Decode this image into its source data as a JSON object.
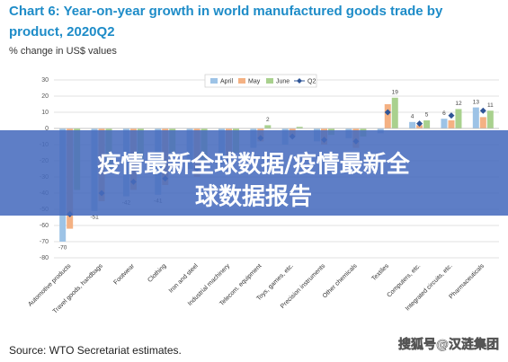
{
  "chart_data": {
    "type": "bar",
    "title": "Chart 6: Year-on-year growth in world manufactured goods trade by product, 2020Q2",
    "subtitle": "% change in US$ values",
    "source": "Source:   WTO Secretariat estimates.",
    "categories": [
      "Automotive products",
      "Travel goods, handbags",
      "Footwear",
      "Clothing",
      "Iron and steel",
      "Industrial machinery",
      "Telecom. equipment",
      "Toys, games, etc.",
      "Precision instruments",
      "Other chemicals",
      "Textiles",
      "Computers, etc.",
      "Integrated circuits, etc.",
      "Pharmaceuticals"
    ],
    "series": [
      {
        "name": "April",
        "color": "#9dc3e6",
        "values": [
          -70,
          -51,
          -42,
          -41,
          -25,
          -22,
          -12,
          -10,
          -8,
          -6,
          -3,
          4,
          6,
          13
        ],
        "value_labels": [
          "-70",
          "-51",
          "-42",
          "-41",
          null,
          null,
          null,
          null,
          null,
          null,
          null,
          "4",
          "6",
          "13"
        ]
      },
      {
        "name": "May",
        "color": "#f4b183",
        "values": [
          -62,
          -45,
          -38,
          -35,
          -30,
          -25,
          -8,
          -5,
          -10,
          -12,
          15,
          2,
          5,
          7
        ]
      },
      {
        "name": "June",
        "color": "#a9d18e",
        "values": [
          -38,
          -25,
          -20,
          -15,
          -20,
          -15,
          2,
          1,
          -4,
          -5,
          19,
          5,
          12,
          11
        ],
        "value_labels": [
          null,
          null,
          null,
          null,
          null,
          null,
          "2",
          null,
          null,
          null,
          "19",
          "5",
          "12",
          "11"
        ]
      },
      {
        "name": "Q2",
        "color": "#2f5597",
        "marker": "diamond",
        "values": [
          -53,
          -40,
          -33,
          -31,
          -25,
          -20,
          -6,
          -5,
          -7,
          -8,
          10,
          3,
          8,
          11
        ]
      }
    ],
    "ylim": [
      -80,
      30
    ],
    "yticks": [
      -80,
      -70,
      -60,
      -50,
      -40,
      -30,
      -20,
      -10,
      0,
      10,
      20,
      30
    ],
    "grid": true,
    "legend": "top"
  },
  "overlay": {
    "text_lines": [
      "疫情最新全球数据/疫情最新全",
      "球数据报告"
    ],
    "watermark": "搜狐号@汉涟集团"
  }
}
